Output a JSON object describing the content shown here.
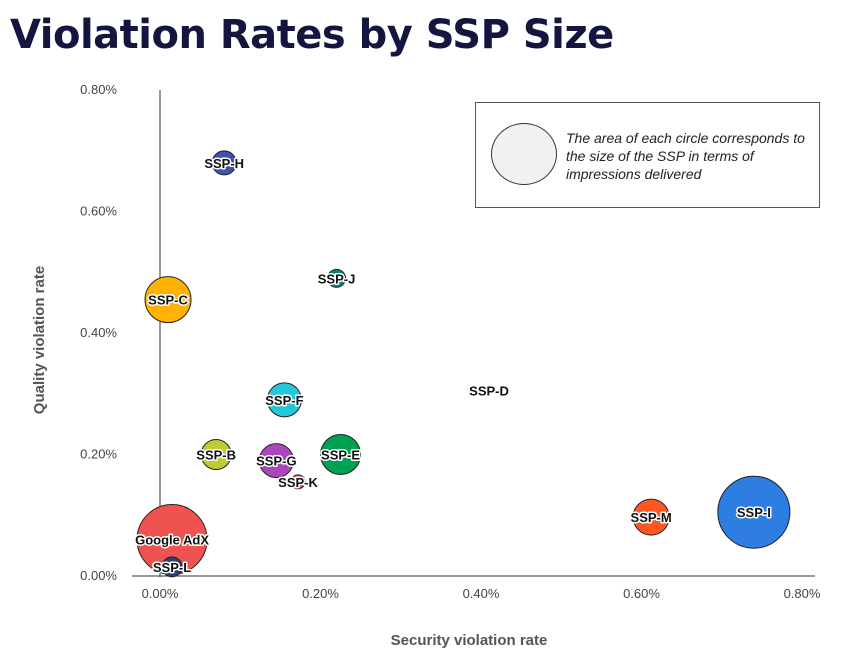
{
  "page": {
    "title": "Violation Rates by SSP Size"
  },
  "legend": {
    "note": "The area of each circle corresponds to the size of the SSP in terms of impressions delivered"
  },
  "chart_data": {
    "type": "scatter",
    "title": "Violation Rates by SSP Size",
    "xlabel": "Security violation rate",
    "ylabel": "Quality violation rate",
    "xlim": [
      0,
      0.8
    ],
    "ylim": [
      0,
      0.8
    ],
    "x_ticks": [
      "0.00%",
      "0.20%",
      "0.40%",
      "0.60%",
      "0.80%"
    ],
    "y_ticks": [
      "0.00%",
      "0.20%",
      "0.40%",
      "0.60%",
      "0.80%"
    ],
    "size_note": "The area of each circle corresponds to the size of the SSP in terms of impressions delivered",
    "points": [
      {
        "label": "SSP-H",
        "x": 0.08,
        "y": 0.68,
        "size": 12,
        "color": "#3f51b5"
      },
      {
        "label": "SSP-J",
        "x": 0.22,
        "y": 0.49,
        "size": 9,
        "color": "#00897b"
      },
      {
        "label": "SSP-C",
        "x": 0.01,
        "y": 0.455,
        "size": 23,
        "color": "#ffb300"
      },
      {
        "label": "SSP-D",
        "x": 0.41,
        "y": 0.305,
        "size": 2,
        "color": "#bbbbbb"
      },
      {
        "label": "SSP-F",
        "x": 0.155,
        "y": 0.29,
        "size": 17,
        "color": "#26c6da"
      },
      {
        "label": "SSP-B",
        "x": 0.07,
        "y": 0.2,
        "size": 15,
        "color": "#c0ca33"
      },
      {
        "label": "SSP-G",
        "x": 0.145,
        "y": 0.19,
        "size": 17,
        "color": "#ab47bc"
      },
      {
        "label": "SSP-E",
        "x": 0.225,
        "y": 0.2,
        "size": 20,
        "color": "#00a152"
      },
      {
        "label": "SSP-K",
        "x": 0.172,
        "y": 0.155,
        "size": 7,
        "color": "#ec407a"
      },
      {
        "label": "SSP-M",
        "x": 0.612,
        "y": 0.097,
        "size": 18,
        "color": "#ff5722"
      },
      {
        "label": "SSP-I",
        "x": 0.74,
        "y": 0.105,
        "size": 36,
        "color": "#2e7de0"
      },
      {
        "label": "Google AdX",
        "x": 0.015,
        "y": 0.06,
        "size": 35,
        "color": "#ef5350"
      },
      {
        "label": "SSP-L",
        "x": 0.015,
        "y": 0.015,
        "size": 10,
        "color": "#2c3e75"
      }
    ]
  }
}
